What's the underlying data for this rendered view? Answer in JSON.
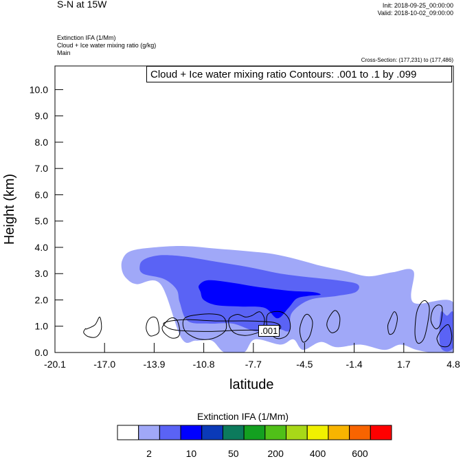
{
  "header": {
    "title": "S-N at 15W",
    "init": "Init: 2018-09-25_00:00:00",
    "valid": "Valid: 2018-10-02_09:00:00"
  },
  "subheader": {
    "line1": "Extinction IFA   (1/Mm)",
    "line2": "Cloud + Ice water mixing ratio   (g/kg)",
    "line3": "Main",
    "cross_section": "Cross-Section: (177,231) to (177,486)"
  },
  "chart_data": {
    "type": "heatmap",
    "title": "S-N at 15W",
    "xlabel": "latitude",
    "ylabel": "Height (km)",
    "xlim": [
      -20.1,
      4.8
    ],
    "ylim": [
      0.0,
      10.9
    ],
    "x_ticks": [
      "-20.1",
      "-17.0",
      "-13.9",
      "-10.8",
      "-7.7",
      "-4.5",
      "-1.4",
      "1.7",
      "4.8"
    ],
    "x_tick_values": [
      -20.1,
      -17.0,
      -13.9,
      -10.8,
      -7.7,
      -4.5,
      -1.4,
      1.7,
      4.8
    ],
    "y_ticks": [
      "0.0",
      "1.0",
      "2.0",
      "3.0",
      "4.0",
      "5.0",
      "6.0",
      "7.0",
      "8.0",
      "9.0",
      "10.0"
    ],
    "y_tick_values": [
      0,
      1,
      2,
      3,
      4,
      5,
      6,
      7,
      8,
      9,
      10
    ],
    "contour_annotation": "Cloud + Ice water mixing ratio Contours: .001 to .1 by .099",
    "contour_label": ".001",
    "colorbar": {
      "title": "Extinction IFA  (1/Mm)",
      "colors": [
        "#ffffff",
        "#a0a8f8",
        "#5a63f5",
        "#0000ff",
        "#0b3ab8",
        "#0c7a5c",
        "#13a020",
        "#50c018",
        "#a8d818",
        "#f0f000",
        "#f8b400",
        "#f86400",
        "#ff0000"
      ],
      "tick_labels": [
        "2",
        "10",
        "50",
        "200",
        "400",
        "600"
      ]
    },
    "fill_regions": [
      {
        "level": 1,
        "color": "#a0a8f8",
        "x": [
          -15.9,
          -15.4,
          -13.9,
          -12.0,
          -10.0,
          -8.0,
          -6.5,
          -5.0,
          -3.5,
          -2.0,
          -0.5,
          1.0,
          2.3,
          2.3,
          4.8,
          4.8,
          3.5,
          2.5,
          1.5,
          0.5,
          -1.0,
          -2.5,
          -3.5,
          -4.6,
          -5.2,
          -6.0,
          -7.6,
          -8.3,
          -9.5,
          -10.3,
          -11.3,
          -12.2,
          -13.5,
          -15.0,
          -15.6,
          -15.9
        ],
        "y": [
          3.5,
          3.85,
          4.0,
          4.05,
          3.95,
          3.85,
          3.75,
          3.55,
          3.3,
          3.1,
          2.9,
          3.05,
          3.1,
          1.9,
          1.9,
          0.0,
          0.0,
          0.1,
          0.3,
          0.1,
          0.3,
          0.2,
          0.4,
          0.1,
          0.5,
          0.3,
          0.5,
          0.0,
          0.0,
          0.45,
          0.45,
          0.55,
          2.6,
          2.6,
          2.8,
          3.1
        ]
      },
      {
        "level": 2,
        "color": "#5a63f5",
        "x": [
          -14.8,
          -14.5,
          -13.5,
          -12.0,
          -10.0,
          -8.0,
          -6.0,
          -4.0,
          -2.5,
          -1.2,
          -1.3,
          -2.5,
          -4.2,
          -5.3,
          -5.4,
          -5.6,
          -6.2,
          -7.5,
          -9.0,
          -10.5,
          -11.8,
          -12.3,
          -12.5,
          -13.3,
          -14.6
        ],
        "y": [
          3.3,
          3.55,
          3.7,
          3.65,
          3.45,
          3.25,
          3.0,
          2.85,
          2.75,
          2.6,
          2.3,
          2.15,
          2.0,
          1.5,
          0.9,
          0.8,
          0.9,
          0.8,
          1.1,
          1.1,
          1.2,
          1.9,
          2.4,
          2.8,
          3.0
        ]
      },
      {
        "level": 3,
        "color": "#0000ff",
        "x": [
          -11.1,
          -10.5,
          -9.0,
          -7.5,
          -5.5,
          -4.0,
          -3.5,
          -4.3,
          -5.0,
          -5.5,
          -6.2,
          -7.0,
          -8.5,
          -10.0,
          -10.8,
          -11.0
        ],
        "y": [
          2.55,
          2.75,
          2.65,
          2.5,
          2.35,
          2.3,
          2.2,
          2.15,
          2.05,
          1.7,
          1.3,
          1.7,
          1.75,
          1.8,
          2.0,
          2.3
        ]
      }
    ],
    "edge_fill_regions": [
      {
        "level": 2,
        "color": "#5a63f5",
        "x": [
          4.0,
          4.4,
          4.8,
          4.8,
          4.0
        ],
        "y": [
          1.5,
          1.4,
          1.5,
          0.2,
          0.2
        ]
      }
    ],
    "contours": [
      {
        "x": [
          -18.1,
          -17.6,
          -17.3,
          -17.2,
          -17.5,
          -18.0,
          -18.3,
          -18.2
        ],
        "y": [
          0.9,
          1.05,
          1.35,
          0.9,
          0.6,
          0.6,
          0.75,
          0.9
        ]
      },
      {
        "x": [
          -14.3,
          -14.0,
          -13.7,
          -13.6,
          -13.9,
          -14.2,
          -14.4
        ],
        "y": [
          1.2,
          1.35,
          1.25,
          0.8,
          0.65,
          0.65,
          0.9
        ]
      },
      {
        "x": [
          -13.3,
          -12.9,
          -12.5,
          -12.3,
          -12.4,
          -12.8,
          -13.2,
          -13.4
        ],
        "y": [
          1.05,
          1.3,
          1.25,
          0.85,
          0.6,
          0.55,
          0.7,
          0.9
        ]
      },
      {
        "x": [
          -12.0,
          -11.0,
          -10.0,
          -9.5,
          -9.4,
          -9.8,
          -10.5,
          -11.3,
          -12.0
        ],
        "y": [
          1.3,
          1.45,
          1.45,
          1.3,
          0.9,
          0.65,
          0.5,
          0.55,
          0.85
        ]
      },
      {
        "x": [
          -9.2,
          -8.7,
          -8.2,
          -7.8,
          -7.3,
          -7.0,
          -7.2,
          -7.7,
          -8.3,
          -8.9,
          -9.2
        ],
        "y": [
          1.3,
          1.45,
          1.35,
          1.4,
          1.55,
          1.25,
          0.85,
          0.7,
          0.65,
          0.75,
          1.0
        ]
      },
      {
        "x": [
          -6.8,
          -6.0,
          -5.5,
          -5.4,
          -5.7,
          -6.3,
          -6.8
        ],
        "y": [
          1.45,
          1.55,
          1.3,
          0.9,
          0.6,
          0.55,
          0.9
        ]
      },
      {
        "x": [
          -4.6,
          -4.3,
          -4.0,
          -4.2,
          -4.6,
          -4.8
        ],
        "y": [
          1.3,
          1.45,
          1.15,
          0.6,
          0.4,
          0.85
        ]
      },
      {
        "x": [
          -3.0,
          -2.6,
          -2.3,
          -2.4,
          -2.8,
          -3.1
        ],
        "y": [
          1.3,
          1.6,
          1.35,
          0.9,
          0.75,
          1.0
        ]
      },
      {
        "x": [
          0.8,
          1.1,
          1.3,
          1.1,
          0.8,
          0.7
        ],
        "y": [
          1.2,
          1.55,
          1.3,
          0.8,
          0.7,
          1.0
        ]
      },
      {
        "x": [
          2.5,
          2.8,
          3.1,
          3.3,
          3.0,
          2.6,
          2.4
        ],
        "y": [
          1.5,
          1.9,
          1.95,
          1.6,
          0.6,
          0.35,
          0.7
        ]
      },
      {
        "x": [
          3.5,
          3.8,
          4.1,
          4.0,
          3.7,
          3.4
        ],
        "y": [
          1.6,
          1.8,
          1.7,
          1.1,
          0.9,
          1.2
        ]
      },
      {
        "x": [
          3.8,
          4.1,
          4.5,
          4.7,
          4.5,
          4.0,
          3.8
        ],
        "y": [
          0.6,
          0.9,
          1.05,
          0.6,
          0.25,
          0.25,
          0.45
        ]
      },
      {
        "x": [
          -13.2,
          -12.0,
          -10.0,
          -8.0,
          -6.5,
          -6.0,
          -6.2,
          -7.0,
          -8.5,
          -10.5,
          -12.5,
          -13.2
        ],
        "y": [
          1.15,
          1.25,
          1.2,
          1.2,
          1.15,
          1.0,
          0.85,
          0.85,
          0.85,
          0.8,
          0.85,
          1.0
        ]
      }
    ]
  }
}
